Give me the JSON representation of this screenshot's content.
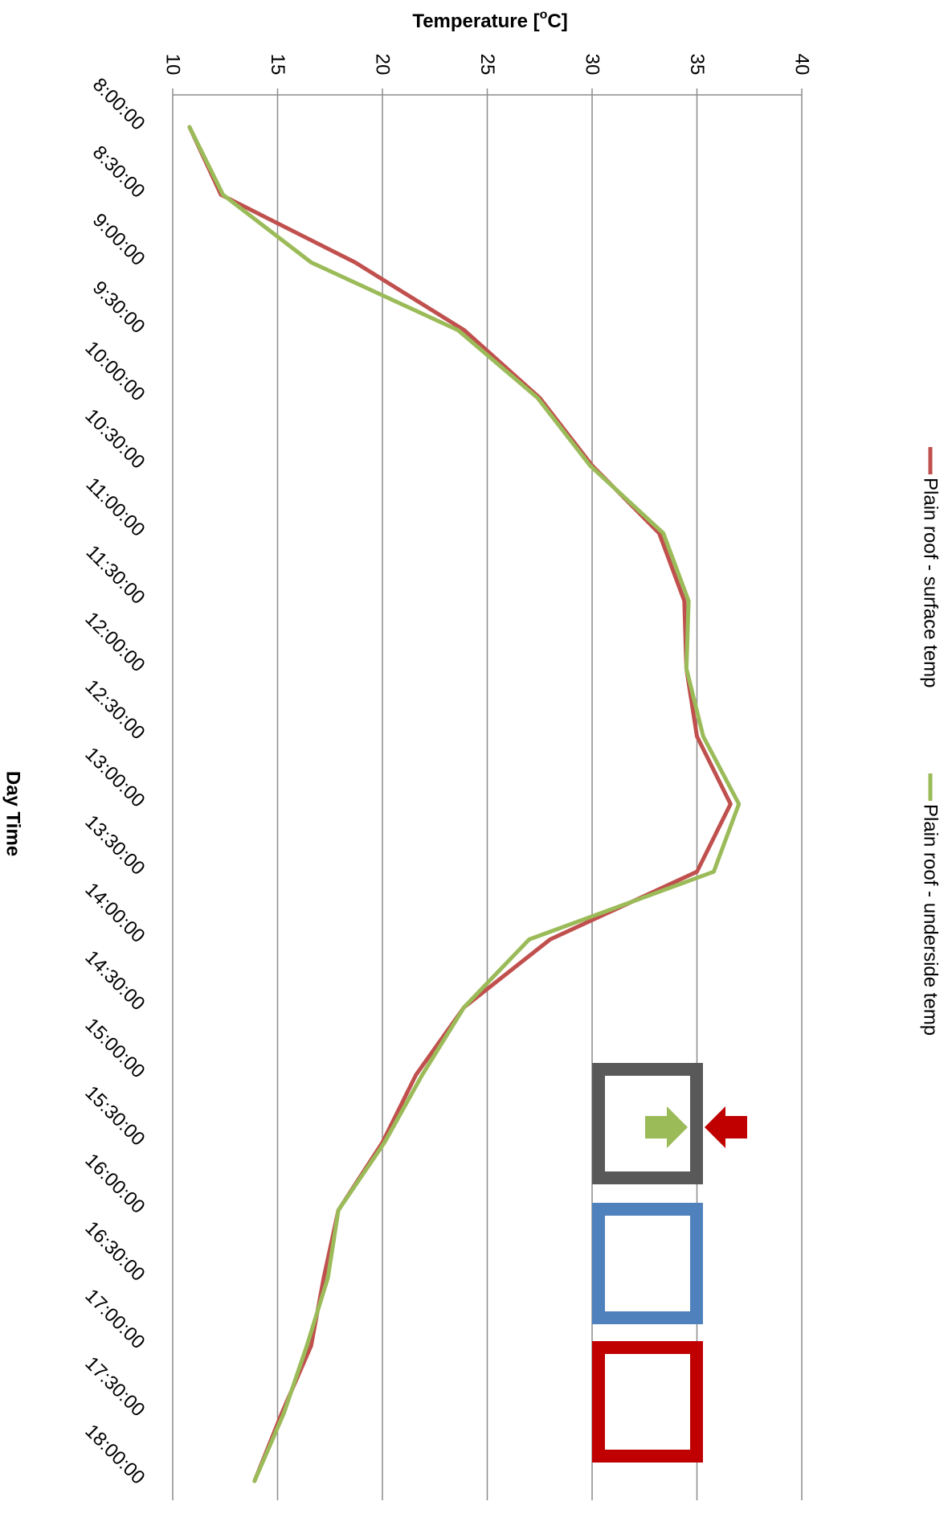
{
  "chart_data": {
    "type": "line",
    "orientation": "rotated-90-clockwise",
    "ylabel": "Temperature [",
    "ylabel_sup": "o",
    "ylabel_unit": "C]",
    "xlabel": "Day Time",
    "ylim": [
      10,
      40
    ],
    "yticks": [
      "10",
      "15",
      "20",
      "25",
      "30",
      "35",
      "40"
    ],
    "grid": true,
    "legend_position": "right",
    "categories": [
      "8:00:00",
      "8:30:00",
      "9:00:00",
      "9:30:00",
      "10:00:00",
      "10:30:00",
      "11:00:00",
      "11:30:00",
      "12:00:00",
      "12:30:00",
      "13:00:00",
      "13:30:00",
      "14:00:00",
      "14:30:00",
      "15:00:00",
      "15:30:00",
      "16:00:00",
      "16:30:00",
      "17:00:00",
      "17:30:00",
      "18:00:00"
    ],
    "series": [
      {
        "name": "Plain roof - surface temp",
        "color": "#c0504d",
        "values": [
          10.8,
          12.3,
          18.7,
          23.9,
          27.5,
          30.0,
          33.2,
          34.4,
          34.5,
          35.0,
          36.6,
          35.0,
          28.0,
          23.9,
          21.6,
          20.0,
          17.9,
          17.2,
          16.6,
          15.2,
          13.9
        ]
      },
      {
        "name": "Plain roof - underside temp",
        "color": "#9bbb59",
        "values": [
          10.8,
          12.4,
          16.6,
          23.6,
          27.4,
          29.9,
          33.4,
          34.6,
          34.5,
          35.3,
          37.0,
          35.8,
          27.0,
          23.9,
          21.9,
          20.1,
          17.9,
          17.4,
          16.4,
          15.3,
          13.9
        ]
      }
    ]
  },
  "indicator_boxes": [
    {
      "name": "gray",
      "color": "#595959"
    },
    {
      "name": "blue",
      "color": "#4f81bd"
    },
    {
      "name": "red",
      "color": "#c00000"
    }
  ],
  "arrows": [
    {
      "name": "green",
      "color": "#9bbb59"
    },
    {
      "name": "red",
      "color": "#c00000"
    }
  ]
}
